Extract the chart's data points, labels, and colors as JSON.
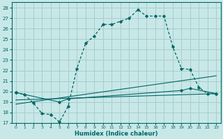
{
  "xlabel": "Humidex (Indice chaleur)",
  "bg_color": "#c8e8e8",
  "grid_color": "#aacccc",
  "line_color": "#006666",
  "xlim": [
    -0.5,
    23.5
  ],
  "ylim": [
    17,
    28.5
  ],
  "xticks": [
    0,
    1,
    2,
    3,
    4,
    5,
    6,
    7,
    8,
    9,
    10,
    11,
    12,
    13,
    14,
    15,
    16,
    17,
    18,
    19,
    20,
    21,
    22,
    23
  ],
  "yticks": [
    17,
    18,
    19,
    20,
    21,
    22,
    23,
    24,
    25,
    26,
    27,
    28
  ],
  "curve1_x": [
    0,
    1,
    2,
    3,
    4,
    5,
    6,
    7,
    8,
    9,
    10,
    11,
    12,
    13,
    14,
    15,
    16,
    17,
    18,
    19,
    20,
    21,
    22,
    23
  ],
  "curve1_y": [
    19.9,
    19.7,
    18.9,
    17.9,
    17.8,
    17.1,
    18.6,
    22.2,
    24.6,
    25.3,
    26.4,
    26.4,
    26.7,
    27.0,
    27.8,
    27.2,
    27.2,
    27.2,
    24.3,
    22.2,
    22.1,
    20.4,
    19.8,
    19.8
  ],
  "line2_x": [
    0,
    5,
    6,
    19,
    20,
    23
  ],
  "line2_y": [
    19.9,
    19.0,
    19.3,
    20.1,
    20.3,
    19.8
  ],
  "line3_x": [
    0,
    23
  ],
  "line3_y": [
    19.2,
    19.8
  ],
  "line4_x": [
    0,
    23
  ],
  "line4_y": [
    18.8,
    21.5
  ]
}
